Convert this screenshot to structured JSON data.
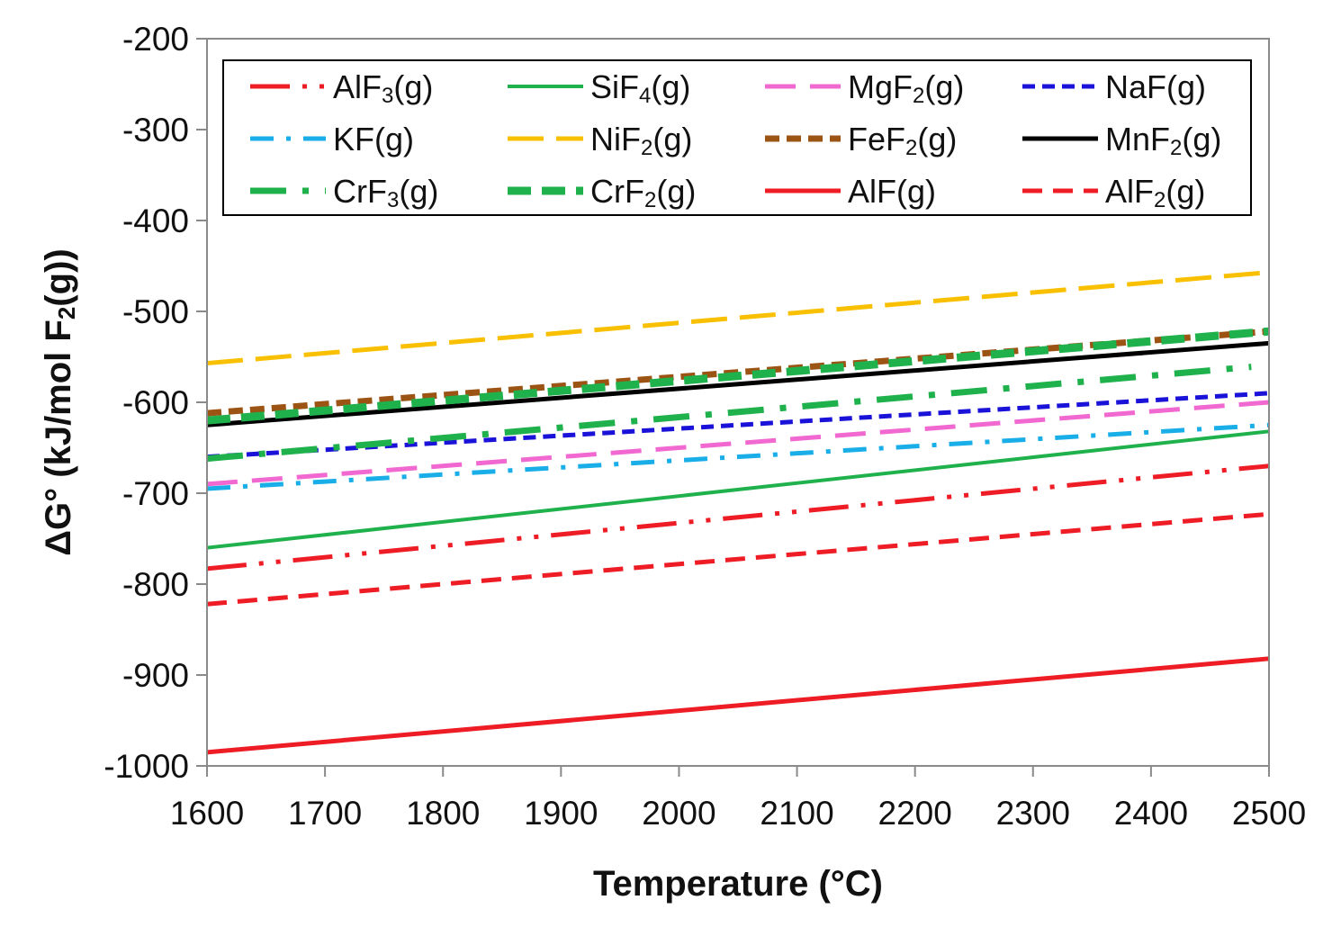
{
  "chart_data": {
    "type": "line",
    "title": "",
    "xlabel": "Temperature (°C)",
    "ylabel": "ΔG° (kJ/mol F2(g))",
    "ylabel_parts": [
      "ΔG° (kJ/mol F",
      "2",
      "(g))"
    ],
    "xlim": [
      1600,
      2500
    ],
    "ylim": [
      -1000,
      -200
    ],
    "xticks": [
      1600,
      1700,
      1800,
      1900,
      2000,
      2100,
      2200,
      2300,
      2400,
      2500
    ],
    "yticks": [
      -200,
      -300,
      -400,
      -500,
      -600,
      -700,
      -800,
      -900,
      -1000
    ],
    "grid": false,
    "legend_position": "top",
    "series": [
      {
        "name": "AlF3(g)",
        "parts": [
          "AlF",
          "3",
          "(g)"
        ],
        "color": "#ee1c25",
        "dash": "44 14 5 14 5 14",
        "width": 5,
        "x": [
          1600,
          2500
        ],
        "y": [
          -783,
          -670
        ]
      },
      {
        "name": "SiF4(g)",
        "parts": [
          "SiF",
          "4",
          "(g)"
        ],
        "color": "#1fb14c",
        "dash": "",
        "width": 4,
        "x": [
          1600,
          2500
        ],
        "y": [
          -760,
          -632
        ]
      },
      {
        "name": "MgF2(g)",
        "parts": [
          "MgF",
          "2",
          "(g)"
        ],
        "color": "#f068d0",
        "dash": "34 16",
        "width": 5,
        "x": [
          1600,
          2500
        ],
        "y": [
          -690,
          -600
        ]
      },
      {
        "name": "NaF(g)",
        "parts": [
          "NaF",
          "(g)"
        ],
        "color": "#1a12d8",
        "dash": "14 8",
        "width": 5,
        "x": [
          1600,
          2500
        ],
        "y": [
          -660,
          -590
        ]
      },
      {
        "name": "KF(g)",
        "parts": [
          "KF",
          "(g)"
        ],
        "color": "#1aaee8",
        "dash": "26 14 5 14",
        "width": 5,
        "x": [
          1600,
          2500
        ],
        "y": [
          -695,
          -625
        ]
      },
      {
        "name": "NiF2(g)",
        "parts": [
          "NiF",
          "2",
          "(g)"
        ],
        "color": "#f8c000",
        "dash": "40 14",
        "width": 5,
        "x": [
          1600,
          2500
        ],
        "y": [
          -557,
          -457
        ]
      },
      {
        "name": "FeF2(g)",
        "parts": [
          "FeF",
          "2",
          "(g)"
        ],
        "color": "#9c5414",
        "dash": "16 8",
        "width": 7,
        "x": [
          1600,
          2500
        ],
        "y": [
          -612,
          -522
        ]
      },
      {
        "name": "MnF2(g)",
        "parts": [
          "MnF",
          "2",
          "(g)"
        ],
        "color": "#000000",
        "dash": "",
        "width": 5,
        "x": [
          1600,
          2500
        ],
        "y": [
          -625,
          -535
        ]
      },
      {
        "name": "CrF3(g)",
        "parts": [
          "CrF",
          "3",
          "(g)"
        ],
        "color": "#1fb14c",
        "dash": "40 18 7 18",
        "width": 7,
        "x": [
          1600,
          2485
        ],
        "y": [
          -662,
          -561
        ]
      },
      {
        "name": "CrF2(g)",
        "parts": [
          "CrF",
          "2",
          "(g)"
        ],
        "color": "#1fb14c",
        "dash": "26 12",
        "width": 9,
        "x": [
          1600,
          2500
        ],
        "y": [
          -620,
          -522
        ]
      },
      {
        "name": "AlF(g)",
        "parts": [
          "AlF",
          "(g)"
        ],
        "color": "#ee1c25",
        "dash": "",
        "width": 5,
        "x": [
          1600,
          2500
        ],
        "y": [
          -985,
          -882
        ]
      },
      {
        "name": "AlF2(g)",
        "parts": [
          "AlF",
          "2",
          "(g)"
        ],
        "color": "#ee1c25",
        "dash": "22 12",
        "width": 5,
        "x": [
          1600,
          2500
        ],
        "y": [
          -822,
          -723
        ]
      }
    ]
  }
}
